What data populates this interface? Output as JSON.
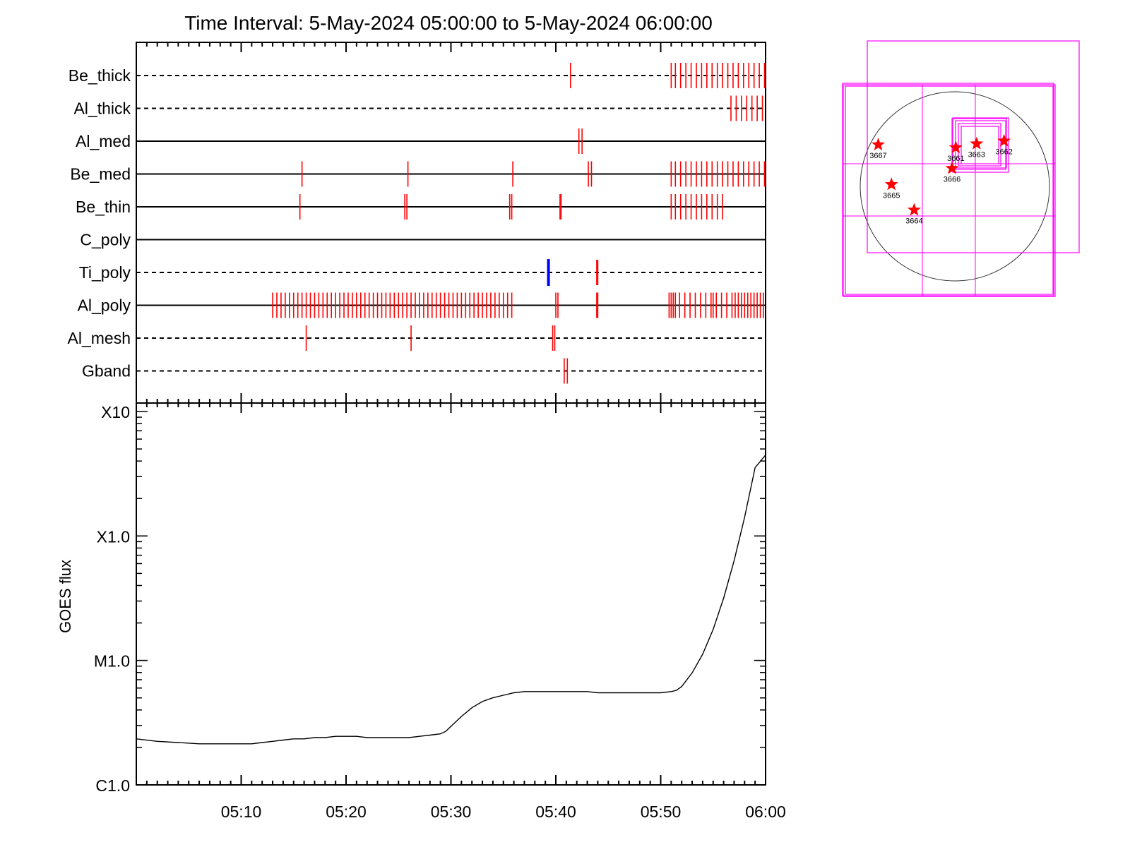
{
  "chart_data": [
    {
      "type": "event_timeline",
      "title": "Time Interval:  5-May-2024 05:00:00 to  5-May-2024 06:00:00",
      "x_unit": "minutes after 05:00",
      "xlim": [
        0,
        60
      ],
      "rows": [
        {
          "label": "Be_thick",
          "style": "dashed",
          "events": [
            41.4,
            51.0,
            51.4,
            51.9,
            52.4,
            52.9,
            53.4,
            53.9,
            54.4,
            54.9,
            55.4,
            55.9,
            56.4,
            56.9,
            57.4,
            57.9,
            58.4,
            58.9,
            59.4,
            59.9
          ]
        },
        {
          "label": "Al_thick",
          "style": "dashed",
          "events": [
            56.7,
            57.2,
            57.7,
            58.2,
            58.7,
            59.2,
            59.7
          ]
        },
        {
          "label": "Al_med",
          "style": "solid",
          "events": [
            42.2,
            42.5
          ]
        },
        {
          "label": "Be_med",
          "style": "solid",
          "events": [
            15.8,
            25.9,
            35.9,
            43.1,
            43.4,
            51.0,
            51.4,
            51.9,
            52.4,
            52.9,
            53.4,
            53.9,
            54.4,
            54.9,
            55.4,
            55.9,
            56.4,
            56.9,
            57.4,
            57.9,
            58.4,
            58.9,
            59.4,
            59.9
          ]
        },
        {
          "label": "Be_thin",
          "style": "solid",
          "events": [
            15.6,
            25.6,
            25.8,
            35.6,
            35.8,
            40.4,
            40.5,
            51.0,
            51.4,
            51.9,
            52.4,
            52.9,
            53.4,
            53.9,
            54.4,
            54.9,
            55.4,
            55.9
          ]
        },
        {
          "label": "C_poly",
          "style": "solid",
          "events": []
        },
        {
          "label": "Ti_poly",
          "style": "dashed",
          "events": [
            43.9,
            44.0
          ],
          "blue_events": [
            39.3
          ]
        },
        {
          "label": "Al_poly",
          "style": "solid",
          "events": [
            13.0,
            13.4,
            13.8,
            14.2,
            14.6,
            15.0,
            15.4,
            15.8,
            16.2,
            16.6,
            17.0,
            17.4,
            17.8,
            18.2,
            18.6,
            19.0,
            19.4,
            19.8,
            20.2,
            20.6,
            21.0,
            21.4,
            21.8,
            22.2,
            22.6,
            23.0,
            23.4,
            23.8,
            24.2,
            24.6,
            25.0,
            25.4,
            25.8,
            26.2,
            26.6,
            27.0,
            27.4,
            27.8,
            28.2,
            28.6,
            29.0,
            29.4,
            29.8,
            30.2,
            30.6,
            31.0,
            31.4,
            31.8,
            32.2,
            32.6,
            33.0,
            33.4,
            33.8,
            34.2,
            34.6,
            35.0,
            35.4,
            35.8,
            40.0,
            40.2,
            43.9,
            44.0,
            50.8,
            51.0,
            51.2,
            51.4,
            51.8,
            52.3,
            52.8,
            53.3,
            53.8,
            54.3,
            54.8,
            55.0,
            55.3,
            55.8,
            56.3,
            56.8,
            57.1,
            57.4,
            57.7,
            58.0,
            58.3,
            58.6,
            58.9,
            59.2,
            59.5,
            59.8
          ]
        },
        {
          "label": "Al_mesh",
          "style": "dashed",
          "events": [
            16.2,
            26.2,
            39.7,
            39.9
          ]
        },
        {
          "label": "Gband",
          "style": "dashed",
          "events": [
            40.8,
            41.1
          ]
        }
      ]
    },
    {
      "type": "line",
      "ylabel": "GOES flux",
      "y_scale": "log",
      "y_ticks": [
        "C1.0",
        "M1.0",
        "X1.0",
        "X10"
      ],
      "ylim": [
        "C1.0",
        "X10"
      ],
      "x_ticks": [
        "05:10",
        "05:20",
        "05:30",
        "05:40",
        "05:50",
        "06:00"
      ],
      "x_unit": "minutes after 05:00",
      "xlim": [
        0,
        60
      ],
      "y_unit": "log10 flux (W/m^2)",
      "x": [
        0,
        2,
        4,
        6,
        8,
        10,
        11,
        12,
        13,
        14,
        15,
        16,
        17,
        18,
        19,
        20,
        21,
        22,
        23,
        24,
        25,
        26,
        27,
        28,
        29,
        29.5,
        30,
        31,
        32,
        33,
        34,
        35,
        36,
        37,
        38,
        39,
        40,
        41,
        42,
        43,
        44,
        45,
        46,
        47,
        48,
        49,
        50,
        51,
        51.5,
        52,
        53,
        54,
        55,
        56,
        57,
        58,
        59,
        60
      ],
      "y": [
        -5.63,
        -5.65,
        -5.66,
        -5.67,
        -5.67,
        -5.67,
        -5.67,
        -5.66,
        -5.65,
        -5.64,
        -5.63,
        -5.63,
        -5.62,
        -5.62,
        -5.61,
        -5.61,
        -5.61,
        -5.62,
        -5.62,
        -5.62,
        -5.62,
        -5.62,
        -5.61,
        -5.6,
        -5.59,
        -5.57,
        -5.53,
        -5.45,
        -5.38,
        -5.33,
        -5.3,
        -5.28,
        -5.26,
        -5.25,
        -5.25,
        -5.25,
        -5.25,
        -5.25,
        -5.25,
        -5.25,
        -5.26,
        -5.26,
        -5.26,
        -5.26,
        -5.26,
        -5.26,
        -5.26,
        -5.25,
        -5.24,
        -5.21,
        -5.1,
        -4.95,
        -4.75,
        -4.5,
        -4.2,
        -3.85,
        -3.45,
        -3.35
      ]
    },
    {
      "type": "solar_disk_map",
      "active_regions": [
        {
          "label": "3667",
          "x": -810,
          "y": 440
        },
        {
          "label": "3665",
          "x": -670,
          "y": 20
        },
        {
          "label": "3664",
          "x": -430,
          "y": -250
        },
        {
          "label": "3666",
          "x": -30,
          "y": 190
        },
        {
          "label": "3661",
          "x": 10,
          "y": 410
        },
        {
          "label": "3663",
          "x": 230,
          "y": 450
        },
        {
          "label": "3662",
          "x": 520,
          "y": 480
        }
      ]
    }
  ],
  "colors": {
    "event": "#ff0000",
    "event_blue": "#0000ff",
    "fov_box": "#ff00ff",
    "axis": "#000000",
    "ar_star": "#ff0000"
  }
}
